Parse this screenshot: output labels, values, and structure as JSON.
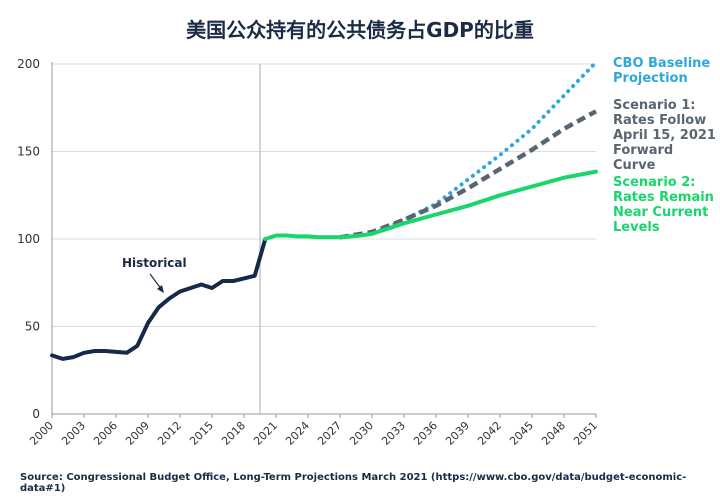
{
  "chart_data": {
    "type": "line",
    "title": "美国公众持有的公共债务占GDP的比重",
    "annotation": "Historical",
    "source": "Source: Congressional Budget Office, Long-Term Projections March 2021 (https://www.cbo.gov/data/budget-economic-data#1)",
    "ylim": [
      0,
      200
    ],
    "yticks": [
      0,
      50,
      100,
      150,
      200
    ],
    "xlim": [
      2000,
      2051
    ],
    "xticks": [
      2000,
      2003,
      2006,
      2009,
      2012,
      2015,
      2018,
      2021,
      2024,
      2027,
      2030,
      2033,
      2036,
      2039,
      2042,
      2045,
      2048,
      2051
    ],
    "grid": "horizontal",
    "vertical_marker_year": 2019.5,
    "legend_position": "right",
    "series": [
      {
        "name": "Historical",
        "color": "#15294a",
        "style": "solid",
        "x": [
          2000,
          2001,
          2002,
          2003,
          2004,
          2005,
          2006,
          2007,
          2008,
          2009,
          2010,
          2011,
          2012,
          2013,
          2014,
          2015,
          2016,
          2017,
          2018,
          2019,
          2020
        ],
        "values": [
          33.5,
          31.5,
          32.5,
          35,
          36,
          36,
          35.5,
          35,
          39,
          52,
          61,
          66,
          70,
          72,
          74,
          72,
          76,
          76,
          77.5,
          79,
          100
        ]
      },
      {
        "name": "CBO Baseline Projection",
        "color": "#2ea8d8",
        "style": "dotted",
        "x": [
          2027,
          2030,
          2033,
          2036,
          2039,
          2042,
          2045,
          2048,
          2051
        ],
        "values": [
          101,
          103,
          111,
          120,
          134,
          148,
          163,
          182,
          201
        ]
      },
      {
        "name": "Scenario 1: Rates Follow April 15, 2021 Forward Curve",
        "color": "#5a6572",
        "style": "dashed",
        "x": [
          2027,
          2030,
          2033,
          2036,
          2039,
          2042,
          2045,
          2048,
          2051
        ],
        "values": [
          101,
          104,
          111,
          119,
          129,
          140,
          151,
          163,
          173
        ]
      },
      {
        "name": "Scenario 2: Rates Remain Near Current Levels",
        "color": "#18d66b",
        "style": "solid",
        "x": [
          2020,
          2021,
          2022,
          2023,
          2024,
          2025,
          2026,
          2027,
          2028,
          2029,
          2030,
          2033,
          2036,
          2039,
          2042,
          2045,
          2048,
          2051
        ],
        "values": [
          100,
          102,
          102,
          101.5,
          101.5,
          101,
          101,
          101,
          101.5,
          102,
          103,
          109,
          114,
          119,
          125,
          130,
          135,
          138.5
        ]
      }
    ],
    "legend": [
      "CBO Baseline Projection",
      "Scenario 1: Rates Follow April 15, 2021 Forward Curve",
      "Scenario 2: Rates Remain Near Current Levels"
    ]
  }
}
